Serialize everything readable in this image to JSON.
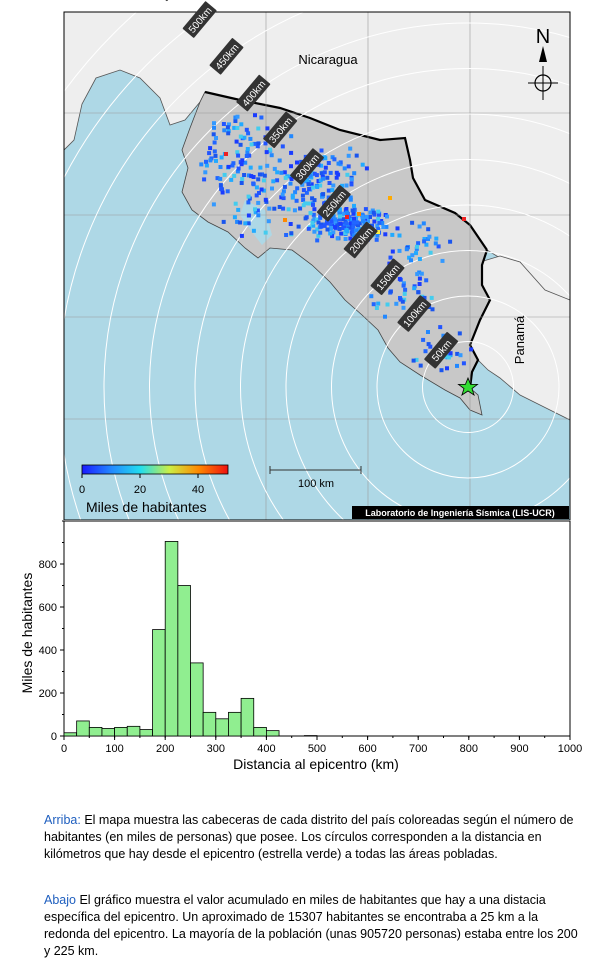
{
  "map": {
    "labels": {
      "country_north": "Nicaragua",
      "country_east": "Panamá",
      "north": "N",
      "credit": "Laboratorio de Ingeniería Sísmica (LIS-UCR)"
    },
    "distance_rings_km": [
      "50km",
      "100km",
      "150km",
      "200km",
      "250km",
      "300km",
      "350km",
      "400km",
      "450km",
      "500km",
      "550km"
    ],
    "colorbar": {
      "label": "Miles de habitantes",
      "ticks": [
        "0",
        "20",
        "40"
      ],
      "range": [
        0,
        50
      ]
    },
    "scalebar_label": "100 km",
    "colors": {
      "sea": "#aed8e6",
      "land_other": "#eeeeee",
      "land_costa_rica": "#c8c8c8",
      "epicenter": "#33dd33"
    }
  },
  "chart_data": {
    "type": "bar",
    "xlabel": "Distancia al epicentro (km)",
    "ylabel": "Miles de habitantes",
    "xlim": [
      0,
      1000
    ],
    "ylim": [
      0,
      1000
    ],
    "xticks": [
      "0",
      "100",
      "200",
      "300",
      "400",
      "500",
      "600",
      "700",
      "800",
      "900",
      "1000"
    ],
    "yticks": [
      "0",
      "200",
      "400",
      "600",
      "800"
    ],
    "bin_width_km": 25,
    "bin_starts_km": [
      0,
      25,
      50,
      75,
      100,
      125,
      150,
      175,
      200,
      225,
      250,
      275,
      300,
      325,
      350,
      375,
      400,
      425,
      450,
      475
    ],
    "values": [
      15,
      70,
      40,
      35,
      40,
      45,
      30,
      495,
      905,
      700,
      340,
      110,
      80,
      110,
      175,
      40,
      25,
      0,
      0,
      2
    ],
    "bar_color": "#90ee90"
  },
  "captions": {
    "top_keyword": "Arriba:",
    "top_text": "El mapa muestra las cabeceras de cada distrito del país coloreadas según el número de habitantes (en miles de personas) que posee.  Los círculos corresponden a la distancia en kilómetros que hay desde el epicentro (estrella verde) a todas las áreas pobladas.",
    "bottom_keyword": "Abajo",
    "bottom_text": "El gráfico muestra el valor acumulado en miles de habitantes que hay a una distacia específica del epicentro.  Un aproximado de 15307 habitantes se encontraba a 25 km a la redonda del epicentro.  La mayoría de la población (unas 905720 personas) estaba entre los 200 y 225 km."
  }
}
